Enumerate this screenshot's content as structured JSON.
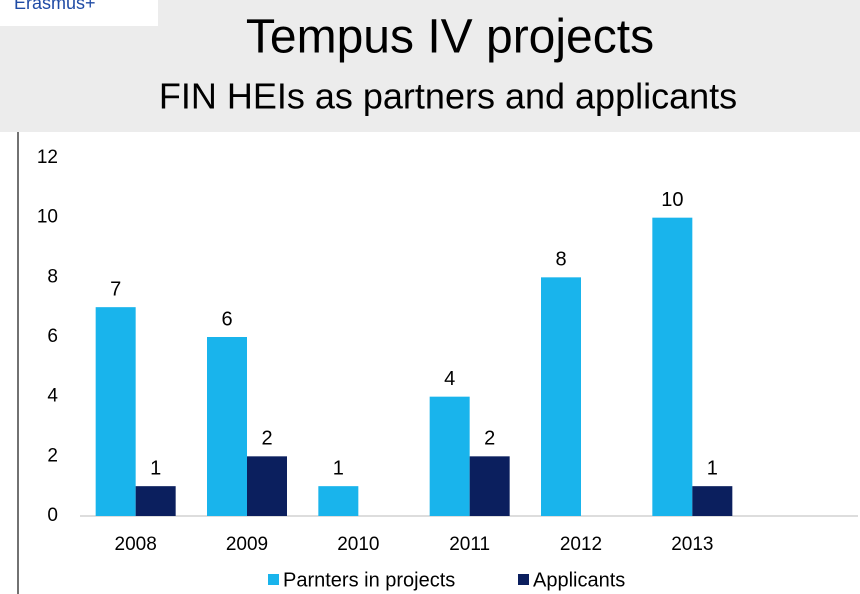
{
  "logo": "Erasmus+",
  "chart_data": {
    "type": "bar",
    "title": "Tempus IV projects",
    "subtitle": "FIN HEIs as partners and applicants",
    "categories": [
      "2008",
      "2009",
      "2010",
      "2011",
      "2012",
      "2013"
    ],
    "series": [
      {
        "name": "Parnters in projects",
        "color": "#19b4ec",
        "values": [
          7,
          6,
          1,
          4,
          8,
          10
        ]
      },
      {
        "name": "Applicants",
        "color": "#0b1f5e",
        "values": [
          1,
          2,
          null,
          2,
          null,
          1
        ]
      }
    ],
    "ylim": [
      0,
      12
    ],
    "yticks": [
      0,
      2,
      4,
      6,
      8,
      10,
      12
    ],
    "grid": false,
    "legend": "bottom",
    "data_labels": true
  }
}
